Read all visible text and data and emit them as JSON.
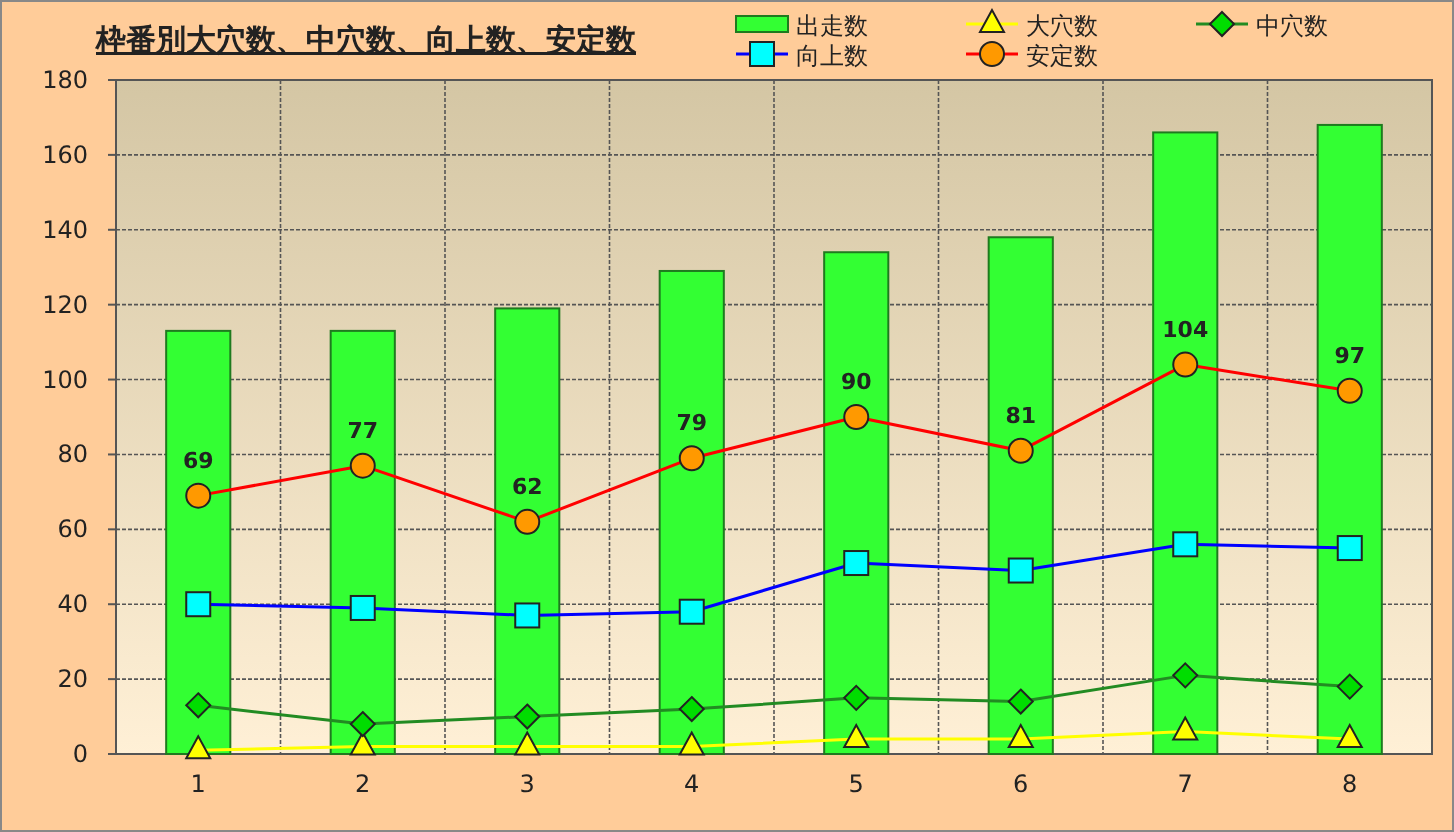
{
  "chart_data": {
    "type": "bar",
    "title": "枠番別大穴数、中穴数、向上数、安定数",
    "categories": [
      "1",
      "2",
      "3",
      "4",
      "5",
      "6",
      "7",
      "8"
    ],
    "series": [
      {
        "name": "出走数",
        "color": "#33ff33",
        "values": [
          113,
          113,
          119,
          129,
          134,
          138,
          166,
          168
        ]
      },
      {
        "name": "大穴数",
        "type": "line",
        "marker": "triangle",
        "color": "#ffff00",
        "values": [
          1,
          2,
          2,
          2,
          4,
          4,
          6,
          4
        ]
      },
      {
        "name": "中穴数",
        "type": "line",
        "marker": "diamond",
        "color": "#228b22",
        "values": [
          13,
          8,
          10,
          12,
          15,
          14,
          21,
          18
        ]
      },
      {
        "name": "向上数",
        "type": "line",
        "marker": "square",
        "color": "#0000ff",
        "values": [
          40,
          39,
          37,
          38,
          51,
          49,
          56,
          55
        ]
      },
      {
        "name": "安定数",
        "type": "line",
        "marker": "circle",
        "color": "#ff0000",
        "values": [
          69,
          77,
          62,
          79,
          90,
          81,
          104,
          97
        ],
        "value_labels": [
          "69",
          "77",
          "62",
          "79",
          "90",
          "81",
          "104",
          "97"
        ]
      }
    ],
    "ylim": [
      0,
      180
    ],
    "yticks": [
      0,
      20,
      40,
      60,
      80,
      100,
      120,
      140,
      160,
      180
    ],
    "grid": true,
    "legend": "top right"
  }
}
